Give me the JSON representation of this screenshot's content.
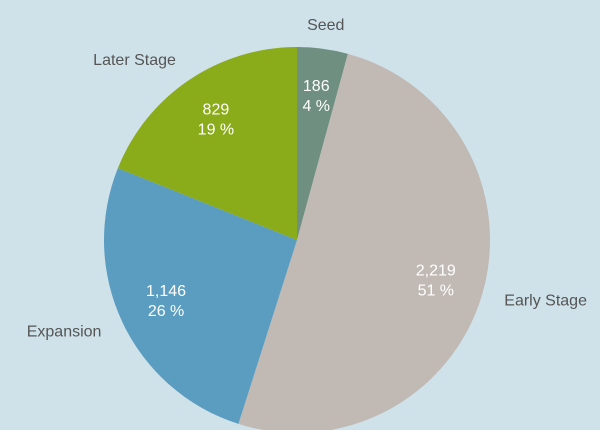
{
  "chart_data": {
    "type": "pie",
    "categories": [
      "Seed",
      "Early Stage",
      "Expansion",
      "Later Stage"
    ],
    "values": [
      186,
      2219,
      1146,
      829
    ],
    "value_labels": [
      "186",
      "2,219",
      "1,146",
      "829"
    ],
    "percent_labels": [
      "4 %",
      "51 %",
      "26 %",
      "19 %"
    ],
    "colors": [
      "#6f8f80",
      "#c0b9b4",
      "#5b9dc0",
      "#8aab1a"
    ]
  }
}
